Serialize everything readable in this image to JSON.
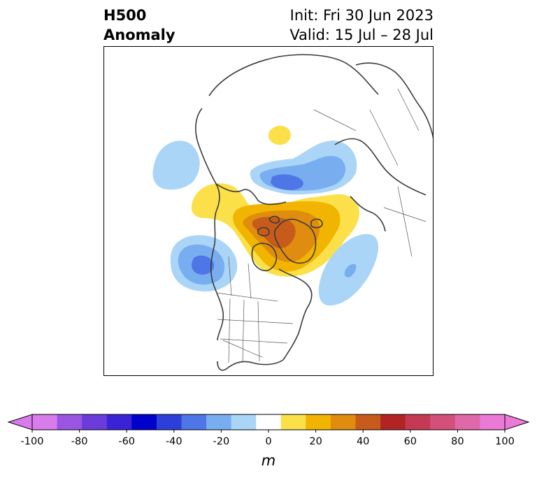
{
  "title": {
    "variable": "H500",
    "field": "Anomaly",
    "init": "Init: Fri 30 Jun 2023",
    "valid": "Valid: 15 Jul – 28 Jul"
  },
  "colorbar": {
    "unit": "m",
    "levels": [
      -100,
      -90,
      -80,
      -70,
      -60,
      -50,
      -40,
      -30,
      -20,
      -10,
      10,
      20,
      30,
      40,
      50,
      60,
      70,
      80,
      90,
      100
    ],
    "tick_labels": [
      "-100",
      "-80",
      "-60",
      "-40",
      "-20",
      "0",
      "20",
      "40",
      "60",
      "80",
      "100"
    ],
    "colors": [
      "#d97bea",
      "#9a56e0",
      "#6a3cd9",
      "#3a22d6",
      "#0000cd",
      "#2c3fd8",
      "#4f76e6",
      "#78aef0",
      "#aad5f7",
      "#ffffff",
      "#fbe04a",
      "#f1b400",
      "#df8c0f",
      "#c65b1b",
      "#b22424",
      "#c43a55",
      "#d3507b",
      "#df69a8",
      "#ea7ad6"
    ],
    "extend": "both"
  },
  "map": {
    "projection": "north-polar-stereographic",
    "region": "North America / Arctic"
  }
}
